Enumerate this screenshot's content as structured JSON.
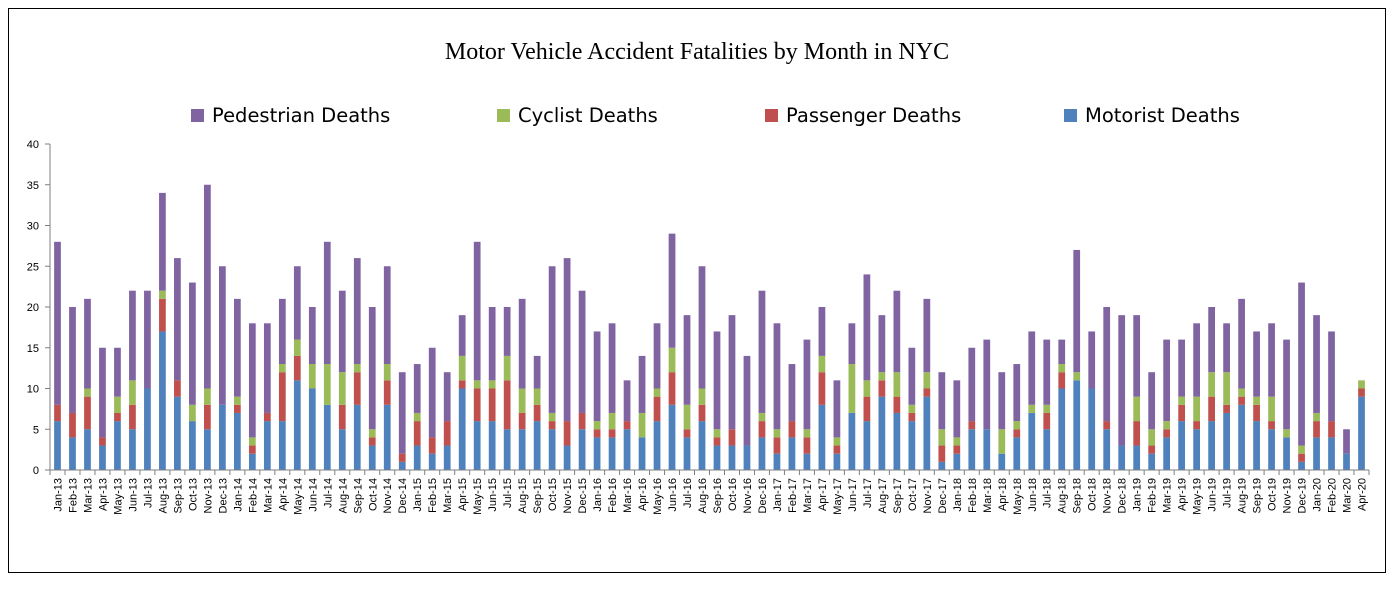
{
  "chart_data": {
    "type": "bar",
    "stacked": true,
    "title": "Motor Vehicle Accident Fatalities by Month in NYC",
    "xlabel": "",
    "ylabel": "",
    "ylim": [
      0,
      40
    ],
    "yticks": [
      0,
      5,
      10,
      15,
      20,
      25,
      30,
      35,
      40
    ],
    "grid": false,
    "legend_position": "top",
    "categories": [
      "Jan-13",
      "Feb-13",
      "Mar-13",
      "Apr-13",
      "May-13",
      "Jun-13",
      "Jul-13",
      "Aug-13",
      "Sep-13",
      "Oct-13",
      "Nov-13",
      "Dec-13",
      "Jan-14",
      "Feb-14",
      "Mar-14",
      "Apr-14",
      "May-14",
      "Jun-14",
      "Jul-14",
      "Aug-14",
      "Sep-14",
      "Oct-14",
      "Nov-14",
      "Dec-14",
      "Jan-15",
      "Feb-15",
      "Mar-15",
      "Apr-15",
      "May-15",
      "Jun-15",
      "Jul-15",
      "Aug-15",
      "Sep-15",
      "Oct-15",
      "Nov-15",
      "Dec-15",
      "Jan-16",
      "Feb-16",
      "Mar-16",
      "Apr-16",
      "May-16",
      "Jun-16",
      "Jul-16",
      "Aug-16",
      "Sep-16",
      "Oct-16",
      "Nov-16",
      "Dec-16",
      "Jan-17",
      "Feb-17",
      "Mar-17",
      "Apr-17",
      "May-17",
      "Jun-17",
      "Jul-17",
      "Aug-17",
      "Sep-17",
      "Oct-17",
      "Nov-17",
      "Dec-17",
      "Jan-18",
      "Feb-18",
      "Mar-18",
      "Apr-18",
      "May-18",
      "Jun-18",
      "Jul-18",
      "Aug-18",
      "Sep-18",
      "Oct-18",
      "Nov-18",
      "Dec-18",
      "Jan-19",
      "Feb-19",
      "Mar-19",
      "Apr-19",
      "May-19",
      "Jun-19",
      "Jul-19",
      "Aug-19",
      "Sep-19",
      "Oct-19",
      "Nov-19",
      "Dec-19",
      "Jan-20",
      "Feb-20",
      "Mar-20",
      "Apr-20"
    ],
    "series": [
      {
        "name": "Motorist Deaths",
        "color": "#4f81bd",
        "values": [
          6,
          4,
          5,
          3,
          6,
          5,
          10,
          17,
          9,
          6,
          5,
          8,
          7,
          2,
          6,
          6,
          11,
          10,
          8,
          5,
          8,
          3,
          8,
          1,
          3,
          2,
          3,
          10,
          6,
          6,
          5,
          5,
          6,
          5,
          3,
          5,
          4,
          4,
          5,
          4,
          6,
          8,
          4,
          6,
          3,
          3,
          3,
          4,
          2,
          4,
          2,
          8,
          2,
          7,
          6,
          9,
          7,
          6,
          9,
          1,
          2,
          5,
          5,
          2,
          4,
          7,
          5,
          10,
          11,
          10,
          5,
          3,
          3,
          2,
          4,
          6,
          5,
          6,
          7,
          8,
          6,
          5,
          4,
          1,
          4,
          4,
          2,
          9
        ]
      },
      {
        "name": "Passenger Deaths",
        "color": "#c0504d",
        "values": [
          2,
          3,
          4,
          1,
          1,
          3,
          0,
          4,
          2,
          0,
          3,
          0,
          1,
          1,
          1,
          6,
          3,
          0,
          0,
          3,
          4,
          1,
          3,
          1,
          3,
          2,
          3,
          1,
          4,
          4,
          6,
          2,
          2,
          1,
          3,
          2,
          1,
          1,
          1,
          0,
          3,
          4,
          1,
          2,
          1,
          2,
          0,
          2,
          2,
          2,
          2,
          4,
          1,
          0,
          3,
          2,
          2,
          1,
          1,
          2,
          1,
          1,
          0,
          0,
          1,
          0,
          2,
          2,
          0,
          0,
          1,
          0,
          3,
          1,
          1,
          2,
          1,
          3,
          1,
          1,
          2,
          1,
          0,
          1,
          2,
          2,
          0,
          1
        ]
      },
      {
        "name": "Cyclist Deaths",
        "color": "#9bbb59",
        "values": [
          0,
          0,
          1,
          0,
          2,
          3,
          0,
          1,
          0,
          2,
          2,
          0,
          1,
          1,
          0,
          1,
          2,
          3,
          5,
          4,
          1,
          1,
          2,
          0,
          1,
          0,
          0,
          3,
          1,
          1,
          3,
          3,
          2,
          1,
          0,
          0,
          1,
          2,
          0,
          3,
          1,
          3,
          3,
          2,
          1,
          0,
          0,
          1,
          1,
          0,
          1,
          2,
          1,
          6,
          2,
          1,
          3,
          1,
          2,
          2,
          1,
          0,
          0,
          3,
          1,
          1,
          1,
          1,
          1,
          0,
          0,
          0,
          3,
          2,
          1,
          1,
          3,
          3,
          4,
          1,
          1,
          3,
          1,
          1,
          1,
          0,
          0,
          1
        ]
      },
      {
        "name": "Pedestrian Deaths",
        "color": "#8064a2",
        "values": [
          20,
          13,
          11,
          11,
          6,
          11,
          12,
          12,
          15,
          15,
          25,
          17,
          12,
          14,
          11,
          8,
          9,
          7,
          15,
          10,
          13,
          15,
          12,
          10,
          6,
          11,
          6,
          5,
          17,
          9,
          6,
          11,
          4,
          18,
          20,
          15,
          11,
          11,
          5,
          7,
          8,
          14,
          11,
          15,
          12,
          14,
          11,
          15,
          13,
          7,
          11,
          6,
          7,
          5,
          13,
          7,
          10,
          7,
          9,
          7,
          7,
          9,
          11,
          7,
          7,
          9,
          8,
          3,
          15,
          7,
          14,
          16,
          10,
          7,
          10,
          7,
          9,
          8,
          6,
          11,
          8,
          9,
          11,
          20,
          12,
          11,
          3,
          0
        ]
      }
    ]
  }
}
